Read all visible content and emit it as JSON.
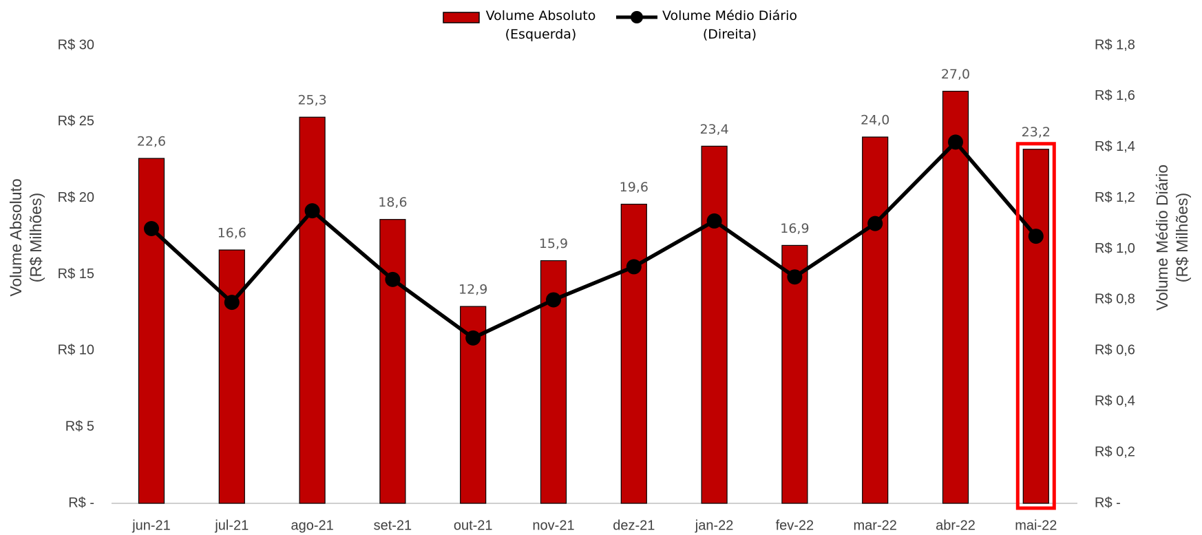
{
  "chart_data": {
    "type": "bar_line",
    "categories": [
      "jun-21",
      "jul-21",
      "ago-21",
      "set-21",
      "out-21",
      "nov-21",
      "dez-21",
      "jan-22",
      "fev-22",
      "mar-22",
      "abr-22",
      "mai-22"
    ],
    "series": [
      {
        "name": "Volume Absoluto (Esquerda)",
        "type": "bar",
        "color": "#c00000",
        "axis": "y",
        "values": [
          22.6,
          16.6,
          25.3,
          18.6,
          12.9,
          15.9,
          19.6,
          23.4,
          16.9,
          24.0,
          27.0,
          23.2
        ],
        "value_labels": [
          "22,6",
          "16,6",
          "25,3",
          "18,6",
          "12,9",
          "15,9",
          "19,6",
          "23,4",
          "16,9",
          "24,0",
          "27,0",
          "23,2"
        ]
      },
      {
        "name": "Volume Médio Diário (Direita)",
        "type": "line",
        "color": "#000000",
        "axis": "y2",
        "values": [
          1.08,
          0.79,
          1.15,
          0.88,
          0.65,
          0.8,
          0.93,
          1.11,
          0.89,
          1.1,
          1.42,
          1.05
        ]
      }
    ],
    "y_label": [
      "Volume Absoluto",
      "(R$ Milhões)"
    ],
    "y2_label": [
      "Volume Médio Diário",
      "(R$ Milhões)"
    ],
    "ylim": [
      0,
      30
    ],
    "yticks": [
      {
        "value": 0,
        "label": "R$ -"
      },
      {
        "value": 5,
        "label": "R$ 5"
      },
      {
        "value": 10,
        "label": "R$ 10"
      },
      {
        "value": 15,
        "label": "R$ 15"
      },
      {
        "value": 20,
        "label": "R$ 20"
      },
      {
        "value": 25,
        "label": "R$ 25"
      },
      {
        "value": 30,
        "label": "R$ 30"
      }
    ],
    "y2lim": [
      0,
      1.8
    ],
    "y2ticks": [
      {
        "value": 0,
        "label": "R$ -"
      },
      {
        "value": 0.2,
        "label": "R$ 0,2"
      },
      {
        "value": 0.4,
        "label": "R$ 0,4"
      },
      {
        "value": 0.6,
        "label": "R$ 0,6"
      },
      {
        "value": 0.8,
        "label": "R$ 0,8"
      },
      {
        "value": 1.0,
        "label": "R$ 1,0"
      },
      {
        "value": 1.2,
        "label": "R$ 1,2"
      },
      {
        "value": 1.4,
        "label": "R$ 1,4"
      },
      {
        "value": 1.6,
        "label": "R$ 1,6"
      },
      {
        "value": 1.8,
        "label": "R$ 1,8"
      }
    ],
    "legend": "top",
    "grid": false
  }
}
